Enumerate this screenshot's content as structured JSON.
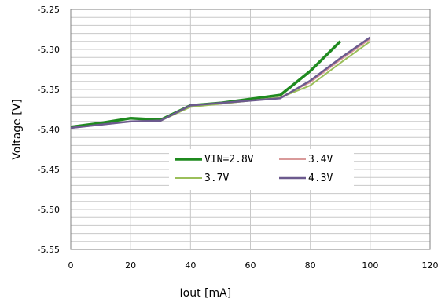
{
  "chart_data": {
    "type": "line",
    "title": "",
    "xlabel": "Iout [mA]",
    "ylabel": "Voltage [V]",
    "xlim": [
      0,
      120
    ],
    "ylim": [
      -5.55,
      -5.25
    ],
    "x_ticks": [
      0,
      20,
      40,
      60,
      80,
      100,
      120
    ],
    "x_tick_labels": [
      "0",
      "20",
      "40",
      "60",
      "80",
      "100",
      "120"
    ],
    "y_ticks": [
      -5.25,
      -5.3,
      -5.35,
      -5.4,
      -5.45,
      -5.5,
      -5.55
    ],
    "y_tick_labels": [
      "-5.25",
      "-5.30",
      "-5.35",
      "-5.40",
      "-5.45",
      "-5.50",
      "-5.55"
    ],
    "grid": true,
    "legend_position": "center-right",
    "series": [
      {
        "name": "VIN=2.8V",
        "color": "#1f8a1f",
        "width": 3.5,
        "x": [
          0,
          10,
          20,
          30,
          40,
          50,
          60,
          70,
          80,
          90
        ],
        "y": [
          -5.397,
          -5.392,
          -5.386,
          -5.388,
          -5.37,
          -5.367,
          -5.362,
          -5.357,
          -5.327,
          -5.29
        ]
      },
      {
        "name": "3.4V",
        "color": "#d99a9a",
        "width": 2,
        "x": [
          0,
          10,
          20,
          30,
          40,
          50,
          60,
          70,
          80,
          90,
          100
        ],
        "y": [
          -5.398,
          -5.394,
          -5.39,
          -5.389,
          -5.371,
          -5.368,
          -5.364,
          -5.36,
          -5.341,
          -5.313,
          -5.287
        ]
      },
      {
        "name": "3.7V",
        "color": "#9bbf5a",
        "width": 2,
        "x": [
          0,
          10,
          20,
          30,
          40,
          50,
          60,
          70,
          80,
          90,
          100
        ],
        "y": [
          -5.398,
          -5.394,
          -5.39,
          -5.389,
          -5.372,
          -5.368,
          -5.364,
          -5.36,
          -5.345,
          -5.317,
          -5.29
        ]
      },
      {
        "name": "4.3V",
        "color": "#6c5a8e",
        "width": 2.5,
        "x": [
          0,
          10,
          20,
          30,
          40,
          50,
          60,
          70,
          80,
          90,
          100
        ],
        "y": [
          -5.398,
          -5.394,
          -5.39,
          -5.389,
          -5.37,
          -5.367,
          -5.364,
          -5.361,
          -5.339,
          -5.311,
          -5.285
        ]
      }
    ]
  }
}
